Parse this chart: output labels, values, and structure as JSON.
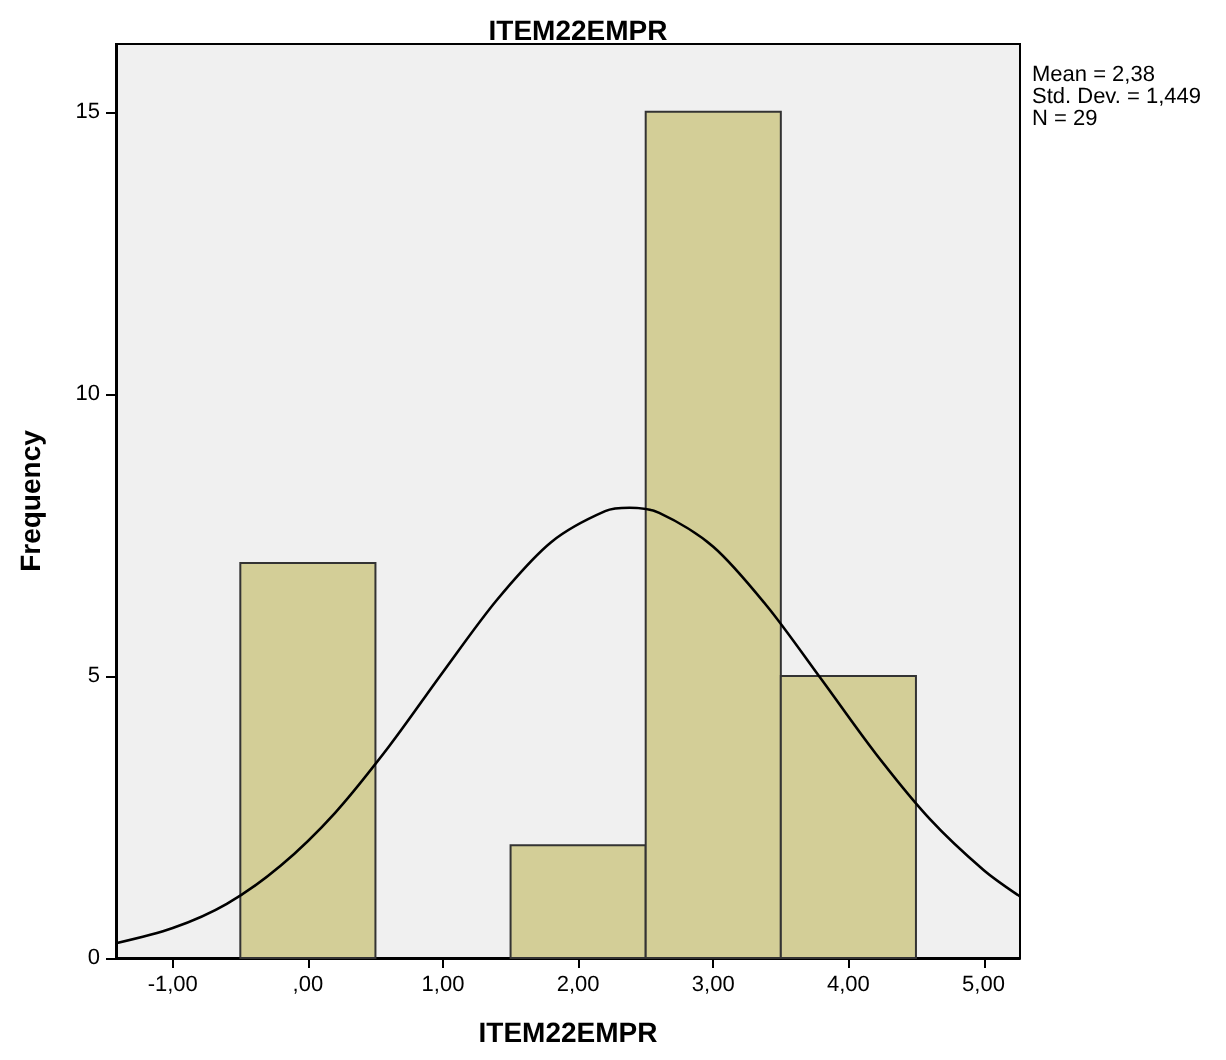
{
  "chart_data": {
    "type": "histogram",
    "title": "ITEM22EMPR",
    "xlabel": "ITEM22EMPR",
    "ylabel": "Frequency",
    "bins": [
      -0.5,
      0.5,
      1.5,
      2.5,
      3.5,
      4.5
    ],
    "values": [
      7,
      0,
      2,
      15,
      5
    ],
    "color": "#d3ce97",
    "series": [
      {
        "type": "line",
        "color": "#000000",
        "x": [
          -1.42,
          -1.0,
          -0.6,
          -0.2,
          0.2,
          0.6,
          1.0,
          1.4,
          1.8,
          2.2,
          2.38,
          2.6,
          3.0,
          3.4,
          3.8,
          4.2,
          4.6,
          5.0,
          5.27
        ],
        "values": [
          0.26,
          0.53,
          0.96,
          1.64,
          2.57,
          3.75,
          5.07,
          6.35,
          7.37,
          7.92,
          7.98,
          7.89,
          7.29,
          6.23,
          4.94,
          3.63,
          2.47,
          1.56,
          1.09
        ]
      }
    ],
    "xlim": [
      -1.42,
      5.27
    ],
    "ylim": [
      0,
      16.2
    ],
    "xticks": [
      {
        "value": -1,
        "label": "-1,00"
      },
      {
        "value": 0,
        "label": ",00"
      },
      {
        "value": 1,
        "label": "1,00"
      },
      {
        "value": 2,
        "label": "2,00"
      },
      {
        "value": 3,
        "label": "3,00"
      },
      {
        "value": 4,
        "label": "4,00"
      },
      {
        "value": 5,
        "label": "5,00"
      }
    ],
    "yticks": [
      0,
      5,
      10,
      15
    ],
    "grid": false,
    "annotations": [
      "Mean = 2,38",
      "Std. Dev. = 1,449",
      "N = 29"
    ]
  }
}
